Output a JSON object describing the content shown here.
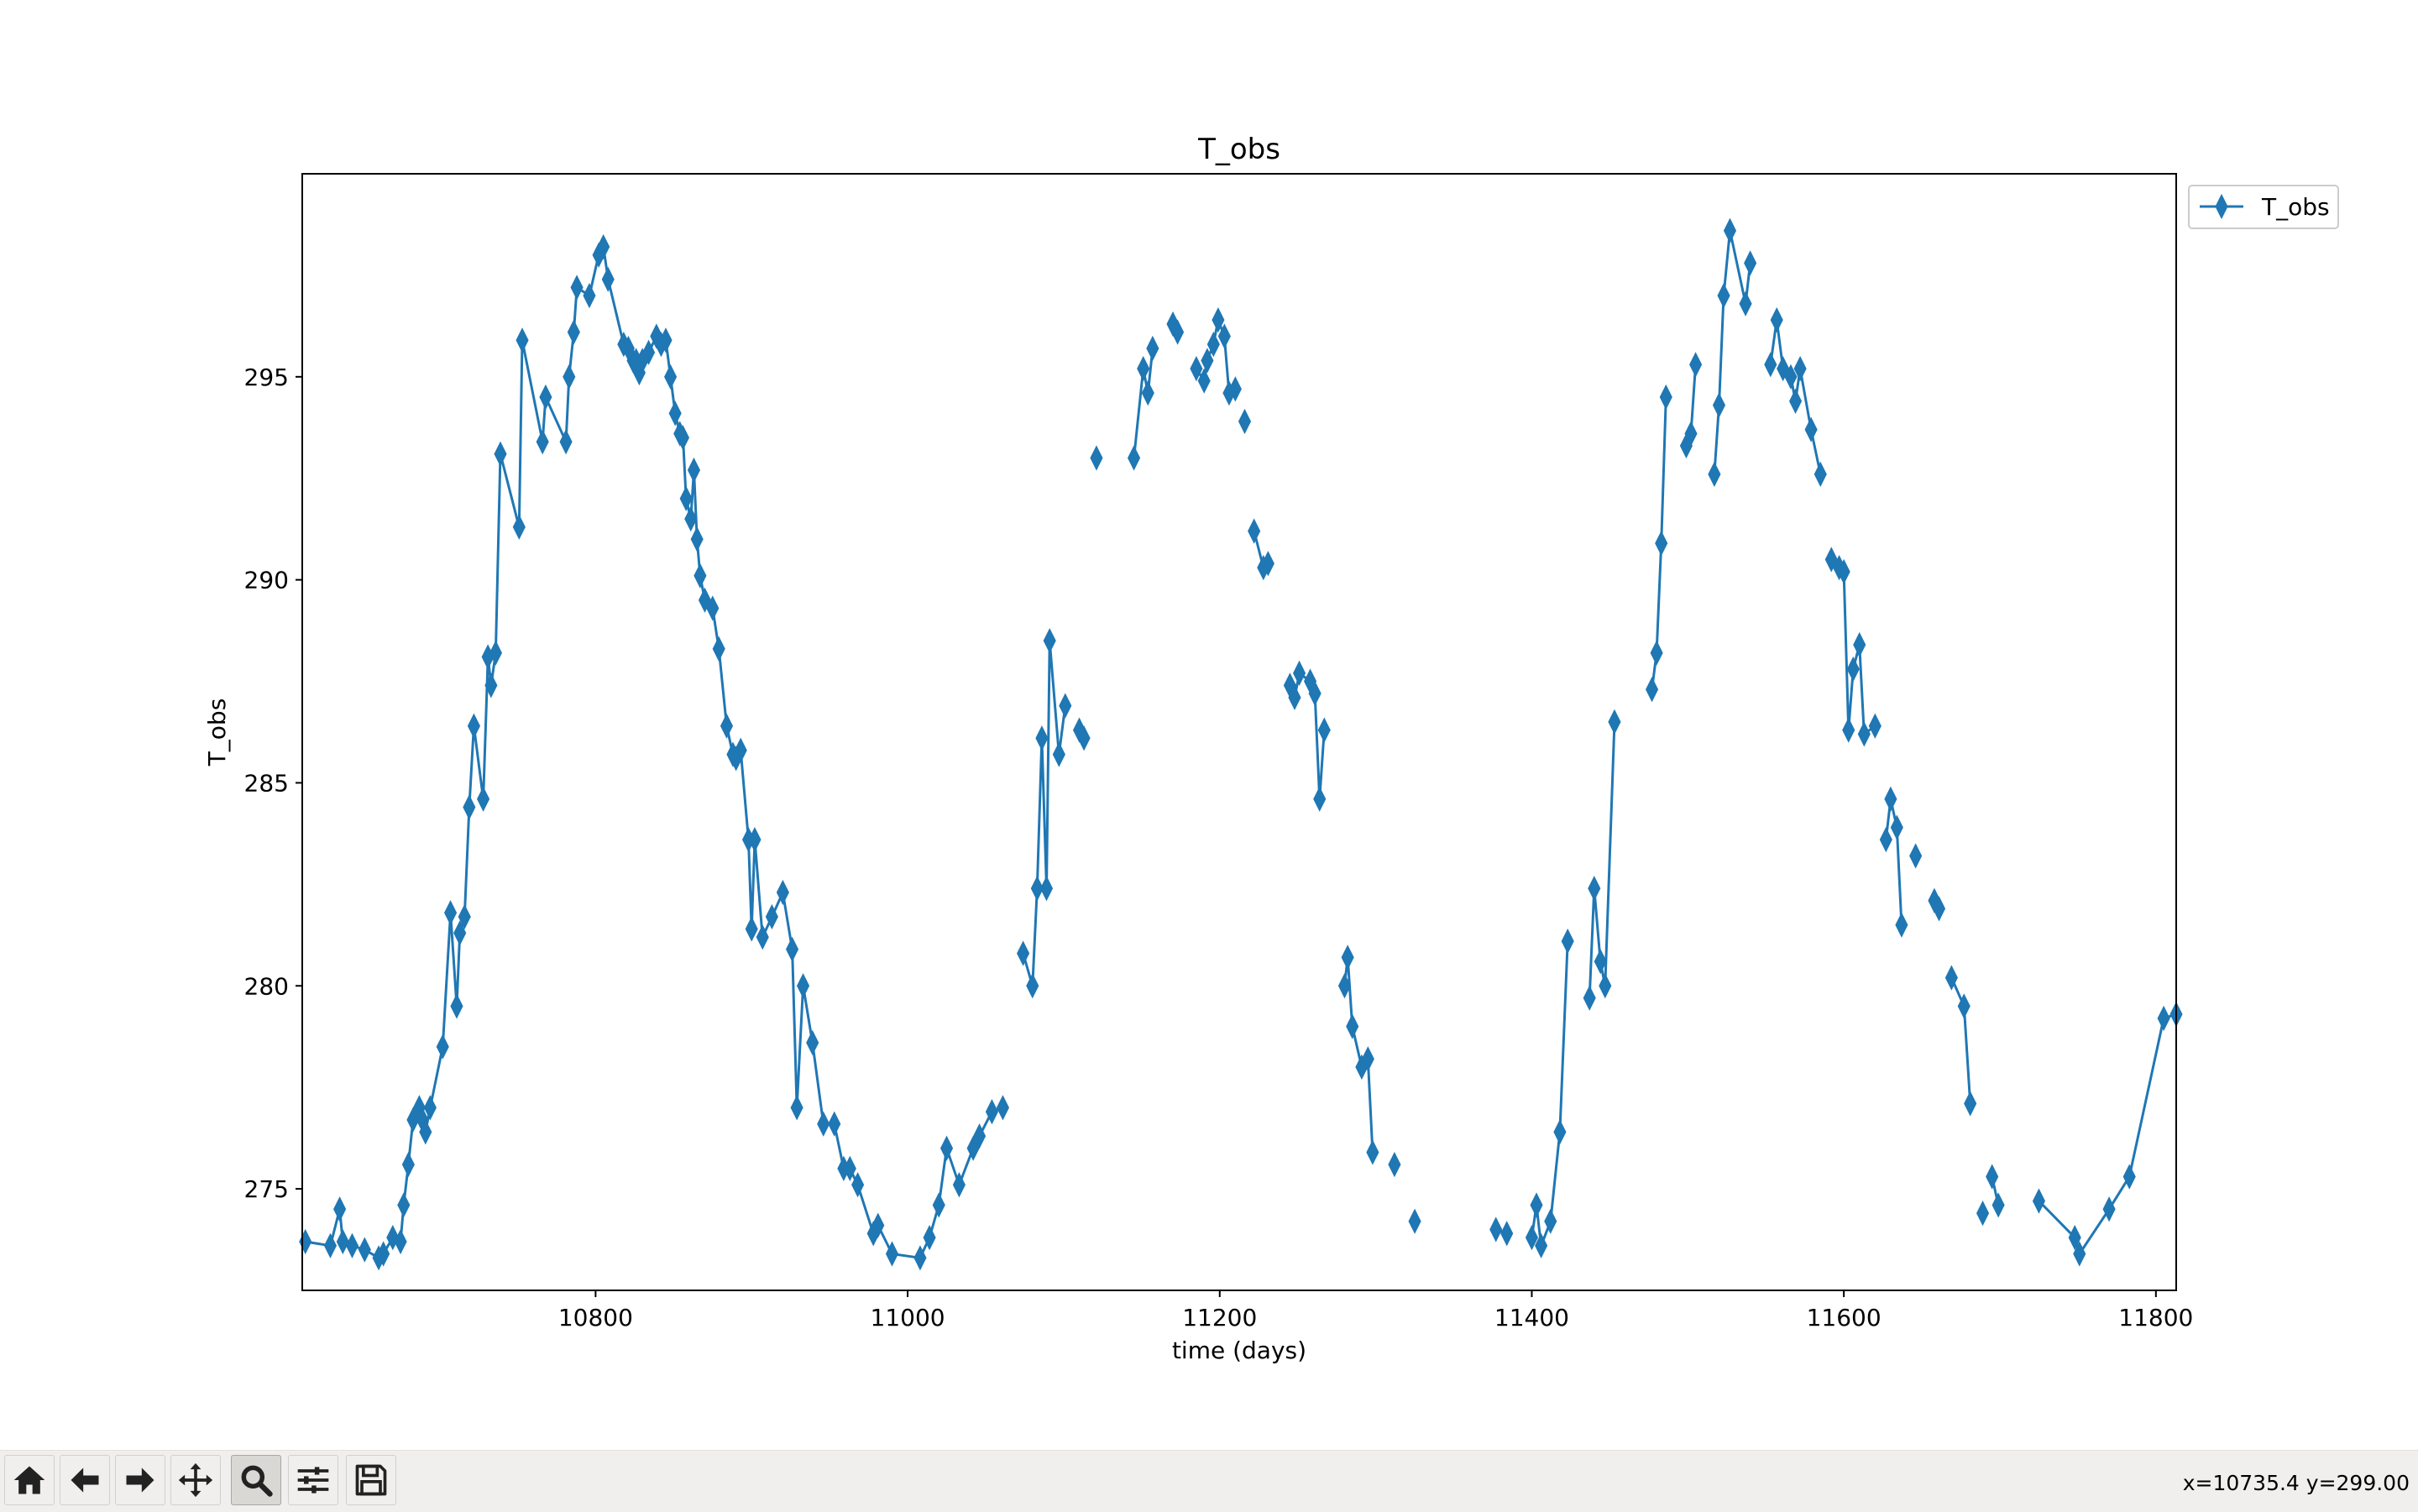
{
  "chart_data": {
    "type": "line",
    "title": "T_obs",
    "xlabel": "time (days)",
    "ylabel": "T_obs",
    "xlim": [
      10612,
      11813
    ],
    "ylim": [
      272.5,
      300
    ],
    "xticks": [
      10800,
      11000,
      11200,
      11400,
      11600,
      11800
    ],
    "yticks": [
      275,
      280,
      285,
      290,
      295
    ],
    "grid": false,
    "legend": {
      "location": "outside-upper-right",
      "entries": [
        "T_obs"
      ]
    },
    "marker": "thin_diamond",
    "color": "#1f77b4",
    "series": [
      {
        "name": "T_obs",
        "segments": [
          [
            [
              10614,
              273.7
            ],
            [
              10630,
              273.6
            ],
            [
              10636,
              274.5
            ],
            [
              10638,
              273.7
            ],
            [
              10644,
              273.6
            ],
            [
              10652,
              273.5
            ],
            [
              10661,
              273.3
            ],
            [
              10664,
              273.4
            ],
            [
              10670,
              273.8
            ],
            [
              10675,
              273.7
            ],
            [
              10677,
              274.6
            ],
            [
              10680,
              275.6
            ],
            [
              10683,
              276.7
            ],
            [
              10687,
              277.0
            ],
            [
              10689,
              276.7
            ],
            [
              10691,
              276.4
            ],
            [
              10694,
              277.0
            ],
            [
              10702,
              278.5
            ],
            [
              10707,
              281.8
            ],
            [
              10711,
              279.5
            ],
            [
              10713,
              281.3
            ],
            [
              10716,
              281.7
            ],
            [
              10719,
              284.4
            ],
            [
              10722,
              286.4
            ],
            [
              10728,
              284.6
            ],
            [
              10731,
              288.1
            ],
            [
              10733,
              287.4
            ],
            [
              10736,
              288.2
            ],
            [
              10739,
              293.1
            ],
            [
              10751,
              291.3
            ],
            [
              10753,
              295.9
            ],
            [
              10766,
              293.4
            ],
            [
              10768,
              294.5
            ],
            [
              10781,
              293.4
            ],
            [
              10783,
              295.0
            ],
            [
              10786,
              296.1
            ],
            [
              10788,
              297.2
            ],
            [
              10796,
              297.0
            ],
            [
              10802,
              298.0
            ],
            [
              10805,
              298.2
            ],
            [
              10808,
              297.4
            ],
            [
              10818,
              295.8
            ],
            [
              10821,
              295.7
            ],
            [
              10824,
              295.4
            ],
            [
              10826,
              295.4
            ],
            [
              10828,
              295.1
            ],
            [
              10830,
              295.4
            ],
            [
              10834,
              295.6
            ],
            [
              10839,
              296.0
            ],
            [
              10842,
              295.8
            ],
            [
              10845,
              295.9
            ],
            [
              10848,
              295.0
            ],
            [
              10851,
              294.1
            ],
            [
              10854,
              293.6
            ],
            [
              10856,
              293.5
            ],
            [
              10858,
              292.0
            ],
            [
              10861,
              291.5
            ],
            [
              10863,
              292.7
            ],
            [
              10865,
              291.0
            ],
            [
              10867,
              290.1
            ],
            [
              10870,
              289.5
            ],
            [
              10875,
              289.3
            ],
            [
              10879,
              288.3
            ],
            [
              10884,
              286.4
            ],
            [
              10888,
              285.7
            ],
            [
              10890,
              285.6
            ],
            [
              10893,
              285.8
            ],
            [
              10898,
              283.6
            ],
            [
              10900,
              281.4
            ],
            [
              10902,
              283.6
            ],
            [
              10907,
              281.2
            ],
            [
              10913,
              281.7
            ],
            [
              10920,
              282.3
            ],
            [
              10926,
              280.9
            ],
            [
              10929,
              277.0
            ],
            [
              10933,
              280.0
            ],
            [
              10939,
              278.6
            ],
            [
              10946,
              276.6
            ],
            [
              10953,
              276.6
            ],
            [
              10959,
              275.5
            ],
            [
              10963,
              275.5
            ],
            [
              10968,
              275.1
            ],
            [
              10978,
              273.9
            ],
            [
              10981,
              274.1
            ],
            [
              10990,
              273.4
            ],
            [
              11008,
              273.3
            ],
            [
              11014,
              273.8
            ],
            [
              11020,
              274.6
            ],
            [
              11025,
              276.0
            ],
            [
              11033,
              275.1
            ],
            [
              11042,
              276.0
            ],
            [
              11046,
              276.3
            ],
            [
              11054,
              276.9
            ],
            [
              11061,
              277.0
            ]
          ],
          [
            [
              11074,
              280.8
            ],
            [
              11080,
              280.0
            ],
            [
              11083,
              282.4
            ],
            [
              11086,
              286.1
            ],
            [
              11089,
              282.4
            ],
            [
              11091,
              288.5
            ],
            [
              11097,
              285.7
            ],
            [
              11101,
              286.9
            ]
          ],
          [
            [
              11110,
              286.3
            ],
            [
              11113,
              286.1
            ]
          ],
          [
            [
              11121,
              293.0
            ]
          ],
          [
            [
              11145,
              293.0
            ],
            [
              11151,
              295.2
            ],
            [
              11154,
              294.6
            ],
            [
              11157,
              295.7
            ]
          ],
          [
            [
              11170,
              296.3
            ],
            [
              11173,
              296.1
            ]
          ],
          [
            [
              11185,
              295.2
            ],
            [
              11190,
              294.9
            ],
            [
              11192,
              295.4
            ],
            [
              11196,
              295.8
            ],
            [
              11199,
              296.4
            ],
            [
              11203,
              296.0
            ],
            [
              11206,
              294.6
            ],
            [
              11210,
              294.7
            ]
          ],
          [
            [
              11216,
              293.9
            ]
          ],
          [
            [
              11222,
              291.2
            ],
            [
              11228,
              290.3
            ],
            [
              11231,
              290.4
            ]
          ],
          [
            [
              11245,
              287.4
            ],
            [
              11248,
              287.1
            ],
            [
              11251,
              287.7
            ],
            [
              11258,
              287.5
            ],
            [
              11261,
              287.2
            ],
            [
              11264,
              284.6
            ],
            [
              11267,
              286.3
            ]
          ],
          [
            [
              11280,
              280.0
            ],
            [
              11282,
              280.7
            ],
            [
              11285,
              279.0
            ],
            [
              11291,
              278.0
            ],
            [
              11295,
              278.2
            ],
            [
              11298,
              275.9
            ]
          ],
          [
            [
              11312,
              275.6
            ]
          ],
          [
            [
              11325,
              274.2
            ]
          ],
          [
            [
              11377,
              274.0
            ],
            [
              11384,
              273.9
            ]
          ],
          [
            [
              11400,
              273.8
            ],
            [
              11403,
              274.6
            ],
            [
              11406,
              273.6
            ],
            [
              11412,
              274.2
            ],
            [
              11418,
              276.4
            ],
            [
              11423,
              281.1
            ]
          ],
          [
            [
              11437,
              279.7
            ],
            [
              11440,
              282.4
            ],
            [
              11444,
              280.6
            ],
            [
              11447,
              280.0
            ],
            [
              11453,
              286.5
            ]
          ],
          [
            [
              11477,
              287.3
            ],
            [
              11480,
              288.2
            ],
            [
              11483,
              290.9
            ],
            [
              11486,
              294.5
            ]
          ],
          [
            [
              11499,
              293.3
            ],
            [
              11502,
              293.6
            ],
            [
              11505,
              295.3
            ]
          ],
          [
            [
              11517,
              292.6
            ],
            [
              11520,
              294.3
            ],
            [
              11523,
              297.0
            ],
            [
              11527,
              298.6
            ],
            [
              11537,
              296.8
            ],
            [
              11540,
              297.8
            ]
          ],
          [
            [
              11553,
              295.3
            ],
            [
              11557,
              296.4
            ],
            [
              11561,
              295.2
            ],
            [
              11566,
              295.0
            ],
            [
              11569,
              294.4
            ],
            [
              11572,
              295.2
            ],
            [
              11579,
              293.7
            ],
            [
              11585,
              292.6
            ]
          ],
          [
            [
              11592,
              290.5
            ],
            [
              11597,
              290.3
            ],
            [
              11600,
              290.2
            ],
            [
              11603,
              286.3
            ],
            [
              11606,
              287.8
            ],
            [
              11610,
              288.4
            ],
            [
              11613,
              286.2
            ],
            [
              11620,
              286.4
            ]
          ],
          [
            [
              11627,
              283.6
            ],
            [
              11630,
              284.6
            ],
            [
              11634,
              283.9
            ],
            [
              11637,
              281.5
            ]
          ],
          [
            [
              11646,
              283.2
            ]
          ],
          [
            [
              11658,
              282.1
            ],
            [
              11661,
              281.9
            ]
          ],
          [
            [
              11669,
              280.2
            ],
            [
              11677,
              279.5
            ],
            [
              11681,
              277.1
            ]
          ],
          [
            [
              11689,
              274.4
            ]
          ],
          [
            [
              11695,
              275.3
            ],
            [
              11699,
              274.6
            ]
          ],
          [
            [
              11725,
              274.7
            ],
            [
              11748,
              273.8
            ],
            [
              11751,
              273.4
            ],
            [
              11770,
              274.5
            ],
            [
              11783,
              275.3
            ],
            [
              11805,
              279.2
            ],
            [
              11813,
              279.3
            ]
          ]
        ]
      }
    ]
  },
  "toolbar": {
    "buttons": [
      {
        "name": "home-button",
        "icon": "home-icon"
      },
      {
        "name": "back-button",
        "icon": "arrow-left-icon"
      },
      {
        "name": "forward-button",
        "icon": "arrow-right-icon"
      },
      {
        "name": "pan-button",
        "icon": "move-icon"
      },
      {
        "name": "zoom-button",
        "icon": "magnifier-icon",
        "active": true
      },
      {
        "name": "configure-subplots-button",
        "icon": "sliders-icon"
      },
      {
        "name": "save-button",
        "icon": "floppy-disk-icon"
      }
    ],
    "coordinates": "x=10735.4 y=299.00"
  }
}
